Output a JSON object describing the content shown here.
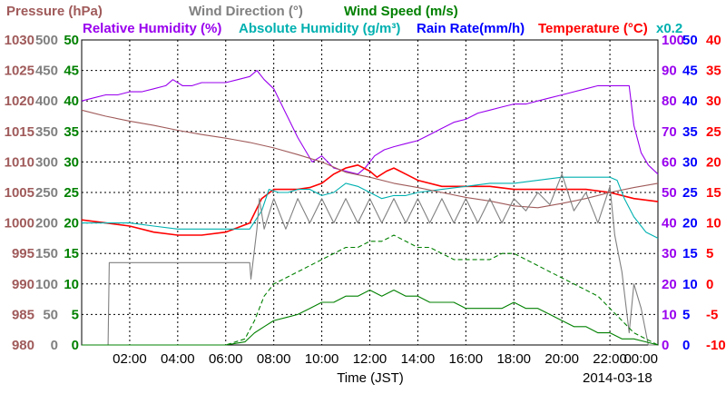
{
  "chart_data": {
    "type": "line",
    "date": "2014-03-18",
    "xlabel": "Time (JST)",
    "x_ticks": [
      "02:00",
      "04:00",
      "06:00",
      "08:00",
      "10:00",
      "12:00",
      "14:00",
      "16:00",
      "18:00",
      "20:00",
      "22:00",
      "00:00"
    ],
    "xlim_hours": [
      0,
      24
    ],
    "grid": true,
    "legend_rows": [
      [
        {
          "key": "pressure",
          "text": "Pressure (hPa)",
          "color": "#a05a5a"
        },
        {
          "key": "wind_direction",
          "text": "Wind Direction (°)",
          "color": "#808080"
        },
        {
          "key": "wind_speed",
          "text": "Wind Speed (m/s)",
          "color": "#008000"
        }
      ],
      [
        {
          "key": "relative_humidity",
          "text": "Relative Humidity (%)",
          "color": "#9900ee"
        },
        {
          "key": "absolute_humidity",
          "text": "Absolute Humidity (g/m³)",
          "color": "#00b0b0"
        },
        {
          "key": "rain_rate",
          "text": "Rain Rate(mm/h)",
          "color": "#0000ff"
        },
        {
          "key": "temperature",
          "text": "Temperature (°C)",
          "color": "#ff0000"
        },
        {
          "key": "abs_scale",
          "text": "x0.2",
          "color": "#00b0b0"
        }
      ]
    ],
    "axes": [
      {
        "name": "pressure",
        "color": "#a05a5a",
        "ticks": [
          "980",
          "985",
          "990",
          "995",
          "1000",
          "1005",
          "1010",
          "1015",
          "1020",
          "1025",
          "1030"
        ],
        "range": [
          980,
          1030
        ]
      },
      {
        "name": "wind_direction",
        "color": "#808080",
        "ticks": [
          "0",
          "50",
          "100",
          "150",
          "200",
          "250",
          "300",
          "350",
          "400",
          "450",
          "500"
        ],
        "range": [
          0,
          500
        ]
      },
      {
        "name": "wind_speed",
        "color": "#008000",
        "ticks": [
          "0",
          "5",
          "10",
          "15",
          "20",
          "25",
          "30",
          "35",
          "40",
          "45",
          "50"
        ],
        "range": [
          0,
          50
        ]
      },
      {
        "name": "relative_humidity",
        "color": "#9900ee",
        "ticks": [
          "0",
          "10",
          "20",
          "30",
          "40",
          "50",
          "60",
          "70",
          "80",
          "90",
          "100"
        ],
        "range": [
          0,
          100
        ]
      },
      {
        "name": "rain_rate",
        "color": "#0000ff",
        "ticks": [
          "0",
          "5",
          "10",
          "15",
          "20",
          "25",
          "30",
          "35",
          "40",
          "45",
          "50"
        ],
        "range": [
          0,
          50
        ]
      },
      {
        "name": "temperature",
        "color": "#ff0000",
        "ticks": [
          "-10",
          "-5",
          "0",
          "5",
          "10",
          "15",
          "20",
          "25",
          "30",
          "35",
          "40"
        ],
        "range": [
          -10,
          40
        ]
      }
    ],
    "series": [
      {
        "name": "Relative Humidity (%)",
        "color": "#9900ee",
        "axis": "relative_humidity",
        "dash": "",
        "x": [
          0,
          0.5,
          1,
          1.5,
          2,
          2.5,
          3,
          3.5,
          3.8,
          4.2,
          4.6,
          5,
          5.5,
          6,
          6.5,
          7,
          7.3,
          7.6,
          8,
          8.5,
          9,
          9.3,
          9.6,
          10,
          10.5,
          11,
          11.5,
          11.8,
          12.2,
          12.6,
          13,
          13.5,
          14,
          14.5,
          15,
          15.5,
          16,
          16.5,
          17,
          17.5,
          18,
          18.5,
          19,
          19.5,
          20,
          20.5,
          21,
          21.5,
          22,
          22.5,
          22.8,
          23,
          23.3,
          23.6,
          24
        ],
        "y": [
          80,
          81,
          82,
          82,
          83,
          83,
          84,
          85,
          87,
          85,
          85,
          86,
          86,
          86,
          87,
          88,
          90,
          87,
          84,
          76,
          68,
          64,
          60,
          62,
          58,
          57,
          56,
          58,
          62,
          64,
          65,
          66,
          67,
          69,
          71,
          73,
          74,
          76,
          77,
          78,
          79,
          79,
          80,
          81,
          82,
          83,
          84,
          85,
          85,
          85,
          85,
          72,
          63,
          59,
          56
        ]
      },
      {
        "name": "Temperature (°C)",
        "color": "#ff0000",
        "axis": "temperature",
        "dash": "",
        "x": [
          0,
          1,
          2,
          3,
          4,
          5,
          6,
          7,
          7.5,
          8,
          8.5,
          9,
          9.5,
          10,
          10.5,
          11,
          11.5,
          12,
          12.3,
          12.7,
          13,
          13.5,
          14,
          15,
          16,
          17,
          18,
          19,
          20,
          21,
          22,
          23,
          24
        ],
        "y": [
          10.5,
          10,
          9.5,
          8.5,
          8,
          8,
          8.5,
          10,
          14,
          15.5,
          15.5,
          15.5,
          15.8,
          16.5,
          18,
          19,
          19.5,
          18.5,
          17.5,
          18.5,
          19,
          18,
          17,
          16,
          16,
          16,
          15.5,
          15.5,
          15.5,
          15.5,
          15,
          14,
          13.5
        ]
      },
      {
        "name": "Absolute Humidity (g/m³)",
        "color": "#00b0b0",
        "axis": "relative_humidity",
        "dash": "",
        "x": [
          0,
          1,
          2,
          3,
          4,
          5,
          6,
          7,
          7.5,
          7.8,
          8.2,
          8.6,
          9,
          9.5,
          10,
          10.5,
          11,
          11.5,
          12,
          12.5,
          13,
          13.5,
          14,
          15,
          16,
          17,
          18,
          19,
          20,
          21,
          21.5,
          22,
          22.3,
          22.6,
          23,
          23.5,
          24
        ],
        "y": [
          40,
          40,
          40,
          39,
          38,
          38,
          38,
          38,
          44,
          51,
          50,
          50,
          51,
          51,
          49,
          50,
          53,
          52,
          50,
          48,
          49,
          49,
          50,
          51,
          52,
          53,
          53,
          54,
          55,
          55,
          55,
          55,
          54,
          48,
          42,
          37,
          35
        ]
      },
      {
        "name": "Pressure (hPa)",
        "color": "#a05a5a",
        "axis": "pressure",
        "dash": "",
        "x": [
          0,
          1,
          2,
          3,
          4,
          5,
          6,
          7,
          8,
          9,
          10,
          11,
          12,
          13,
          14,
          15,
          16,
          17,
          18,
          19,
          20,
          21,
          22,
          23,
          24
        ],
        "y": [
          1018.5,
          1017.5,
          1016.7,
          1016,
          1015.2,
          1014.5,
          1013.9,
          1013.2,
          1012.3,
          1011.2,
          1010,
          1008.3,
          1007.5,
          1006.5,
          1005.8,
          1005,
          1004.2,
          1003.6,
          1002.8,
          1002.5,
          1003.2,
          1004,
          1005,
          1005.8,
          1006.5
        ]
      },
      {
        "name": "Wind Direction (°)",
        "color": "#808080",
        "axis": "wind_direction",
        "dash": "",
        "x": [
          0,
          1.1,
          1.15,
          7.0,
          7.05,
          7.3,
          7.4,
          7.6,
          8,
          8.5,
          9,
          9.5,
          10,
          10.5,
          11,
          11.5,
          12,
          12.5,
          13,
          13.5,
          14,
          14.5,
          15,
          15.5,
          16,
          16.5,
          17,
          17.5,
          18,
          18.5,
          19,
          19.5,
          20,
          20.5,
          21,
          21.5,
          22,
          22.2,
          22.5,
          22.8,
          23,
          23.3,
          23.6,
          24
        ],
        "y": [
          0,
          0,
          135,
          135,
          108,
          190,
          240,
          190,
          240,
          190,
          240,
          200,
          240,
          200,
          240,
          200,
          240,
          200,
          240,
          200,
          240,
          200,
          240,
          200,
          240,
          200,
          240,
          200,
          240,
          220,
          250,
          230,
          280,
          220,
          250,
          200,
          260,
          180,
          120,
          20,
          100,
          60,
          0,
          0
        ]
      },
      {
        "name": "Wind Speed (m/s) dashed",
        "color": "#008000",
        "axis": "wind_speed",
        "dash": "5,3",
        "x": [
          0,
          1,
          2,
          3,
          4,
          5,
          6,
          6.8,
          7.2,
          7.6,
          8,
          8.5,
          9,
          9.5,
          10,
          10.5,
          11,
          11.5,
          12,
          12.5,
          13,
          13.5,
          14,
          14.5,
          15,
          15.5,
          16,
          16.5,
          17,
          17.5,
          18,
          18.5,
          19,
          19.5,
          20,
          20.5,
          21,
          21.5,
          22,
          22.5,
          23,
          23.5,
          24
        ],
        "y": [
          0,
          0,
          0,
          0,
          0,
          0,
          0,
          1,
          4,
          8,
          10,
          11,
          12,
          13,
          14,
          15,
          16,
          16,
          17,
          17,
          18,
          17,
          16,
          16,
          15,
          14,
          14,
          14,
          14,
          15,
          15,
          14,
          13,
          12,
          11,
          10,
          9,
          8,
          6,
          4,
          2,
          1,
          0
        ]
      },
      {
        "name": "Wind Speed (m/s) solid",
        "color": "#008000",
        "axis": "wind_speed",
        "dash": "",
        "x": [
          0,
          1,
          2,
          3,
          4,
          5,
          6,
          6.8,
          7.2,
          7.6,
          8,
          8.5,
          9,
          9.5,
          10,
          10.5,
          11,
          11.5,
          12,
          12.5,
          13,
          13.5,
          14,
          14.5,
          15,
          15.5,
          16,
          16.5,
          17,
          17.5,
          18,
          18.5,
          19,
          19.5,
          20,
          20.5,
          21,
          21.5,
          22,
          22.5,
          23,
          23.5,
          24
        ],
        "y": [
          0,
          0,
          0,
          0,
          0,
          0,
          0,
          0.5,
          2,
          3,
          4,
          4.5,
          5,
          6,
          7,
          7,
          8,
          8,
          9,
          8,
          9,
          8,
          8,
          7,
          7,
          7,
          6,
          6,
          6,
          6,
          7,
          6,
          6,
          5,
          4,
          3,
          3,
          2,
          2,
          1,
          1,
          0.5,
          0
        ]
      }
    ]
  }
}
